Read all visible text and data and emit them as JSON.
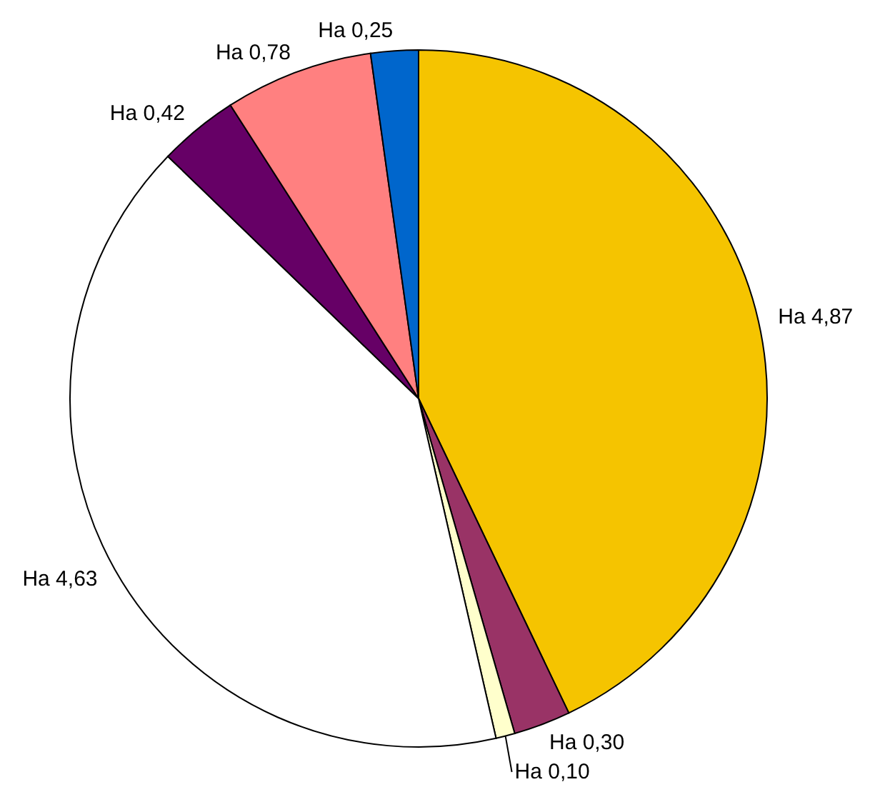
{
  "chart_data": {
    "type": "pie",
    "categories": [
      null,
      null,
      null,
      null,
      null,
      null,
      null
    ],
    "values": [
      4.87,
      0.3,
      0.1,
      4.63,
      0.42,
      0.78,
      0.25
    ],
    "colors": [
      "#f5c400",
      "#993366",
      "#ffffcc",
      "#ffffff",
      "#660066",
      "#ff8080",
      "#0066cc"
    ],
    "value_labels": [
      "Ha 4,87",
      "Ha 0,30",
      "Ha 0,10",
      "Ha 4,63",
      "Ha 0,42",
      "Ha 0,78",
      "Ha 0,25"
    ],
    "legend": false
  }
}
